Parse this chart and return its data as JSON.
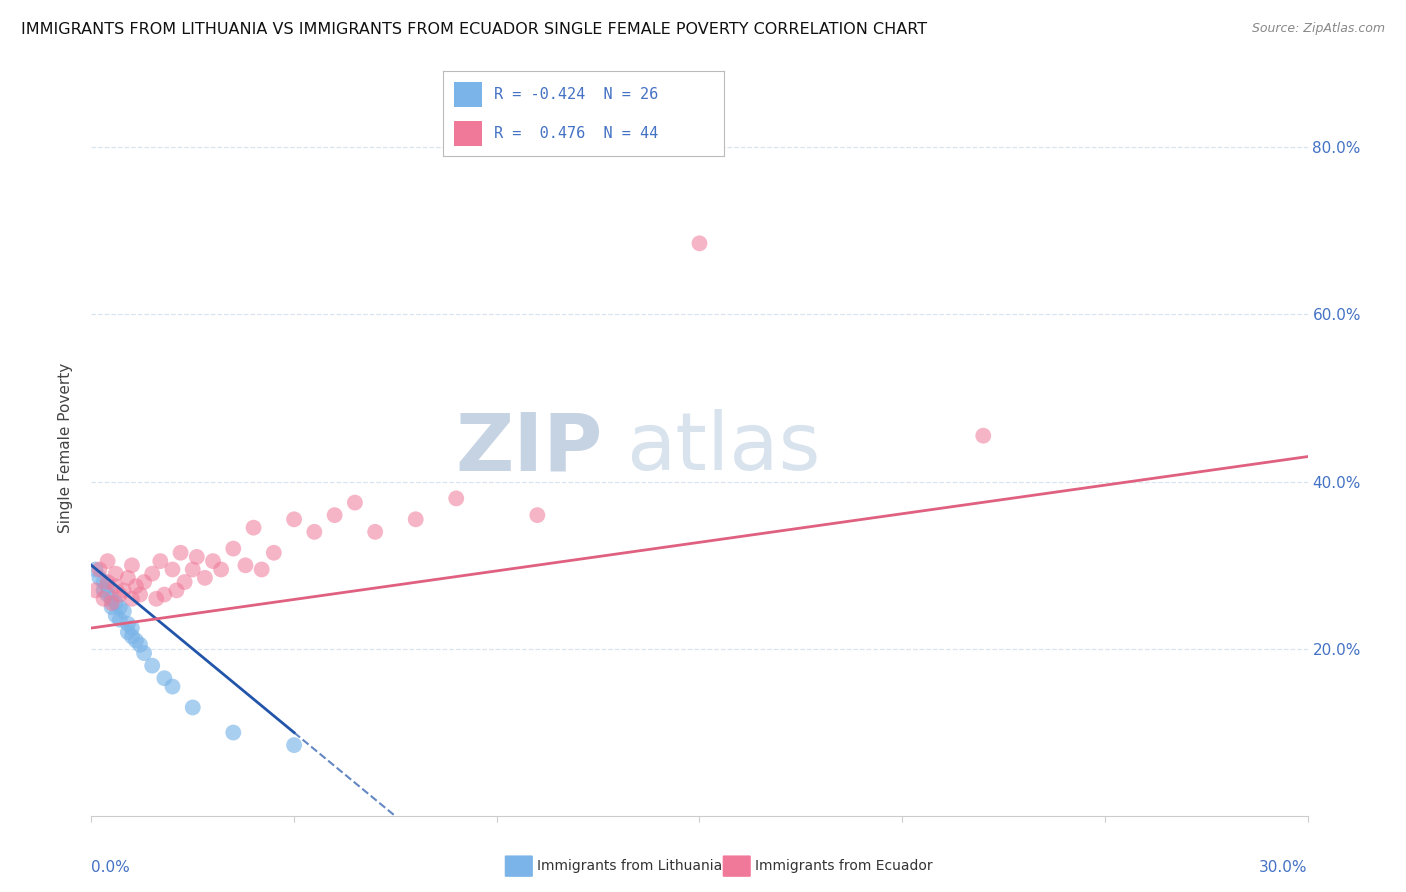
{
  "title": "IMMIGRANTS FROM LITHUANIA VS IMMIGRANTS FROM ECUADOR SINGLE FEMALE POVERTY CORRELATION CHART",
  "source": "Source: ZipAtlas.com",
  "ylabel": "Single Female Poverty",
  "y_ticks": [
    0.2,
    0.4,
    0.6,
    0.8
  ],
  "y_tick_labels": [
    "20.0%",
    "40.0%",
    "60.0%",
    "80.0%"
  ],
  "xmin": 0.0,
  "xmax": 0.3,
  "ymin": 0.0,
  "ymax": 0.88,
  "legend_r1": "R = -0.424  N = 26",
  "legend_r2": "R =  0.476  N = 44",
  "lithuania_x": [
    0.001,
    0.002,
    0.003,
    0.003,
    0.004,
    0.004,
    0.005,
    0.005,
    0.006,
    0.006,
    0.007,
    0.007,
    0.008,
    0.009,
    0.009,
    0.01,
    0.01,
    0.011,
    0.012,
    0.013,
    0.015,
    0.018,
    0.02,
    0.025,
    0.035,
    0.05
  ],
  "lithuania_y": [
    0.295,
    0.285,
    0.28,
    0.27,
    0.265,
    0.275,
    0.26,
    0.25,
    0.255,
    0.24,
    0.235,
    0.25,
    0.245,
    0.23,
    0.22,
    0.215,
    0.225,
    0.21,
    0.205,
    0.195,
    0.18,
    0.165,
    0.155,
    0.13,
    0.1,
    0.085
  ],
  "ecuador_x": [
    0.001,
    0.002,
    0.003,
    0.004,
    0.004,
    0.005,
    0.006,
    0.006,
    0.007,
    0.008,
    0.009,
    0.01,
    0.01,
    0.011,
    0.012,
    0.013,
    0.015,
    0.016,
    0.017,
    0.018,
    0.02,
    0.021,
    0.022,
    0.023,
    0.025,
    0.026,
    0.028,
    0.03,
    0.032,
    0.035,
    0.038,
    0.04,
    0.042,
    0.045,
    0.05,
    0.055,
    0.06,
    0.065,
    0.07,
    0.08,
    0.09,
    0.11,
    0.15,
    0.22
  ],
  "ecuador_y": [
    0.27,
    0.295,
    0.26,
    0.28,
    0.305,
    0.255,
    0.275,
    0.29,
    0.265,
    0.27,
    0.285,
    0.26,
    0.3,
    0.275,
    0.265,
    0.28,
    0.29,
    0.26,
    0.305,
    0.265,
    0.295,
    0.27,
    0.315,
    0.28,
    0.295,
    0.31,
    0.285,
    0.305,
    0.295,
    0.32,
    0.3,
    0.345,
    0.295,
    0.315,
    0.355,
    0.34,
    0.36,
    0.375,
    0.34,
    0.355,
    0.38,
    0.36,
    0.685,
    0.455
  ],
  "scatter_color_lithuania": "#7ab4e8",
  "scatter_color_ecuador": "#f07898",
  "scatter_alpha_lithuania": 0.65,
  "scatter_alpha_ecuador": 0.55,
  "scatter_size": 130,
  "watermark_zip_color": "#c8d4e8",
  "watermark_atlas_color": "#c8d4e8",
  "background_color": "#ffffff",
  "grid_color": "#d8e4f0",
  "title_fontsize": 11.5,
  "source_fontsize": 9,
  "axis_label_color": "#4472c4",
  "trend_lith_color": "#2255aa",
  "trend_ecua_color": "#e06080"
}
